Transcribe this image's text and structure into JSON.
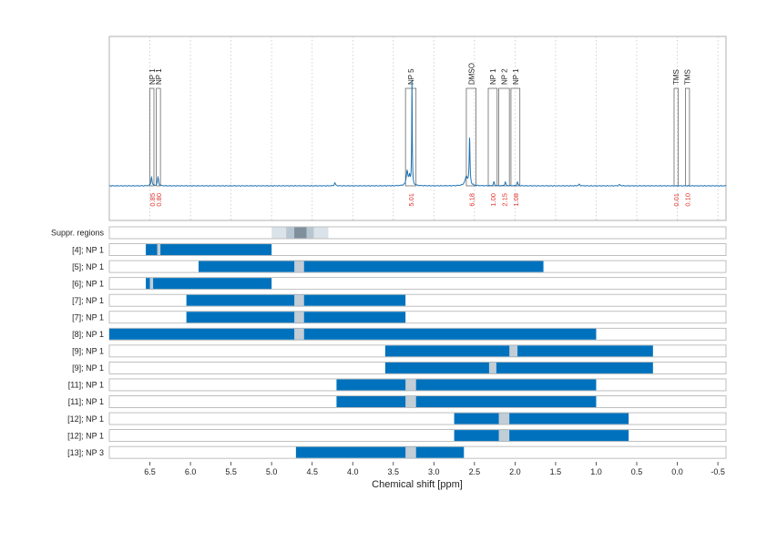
{
  "chart_data": {
    "type": "nmr-spectrum",
    "xlabel": "Chemical shift [ppm]",
    "xlim": [
      7.0,
      -0.6
    ],
    "xticks": [
      {
        "value": 6.5,
        "label": "6.5"
      },
      {
        "value": 6.0,
        "label": "6.0"
      },
      {
        "value": 5.5,
        "label": "5.5"
      },
      {
        "value": 5.0,
        "label": "5.0"
      },
      {
        "value": 4.5,
        "label": "4.5"
      },
      {
        "value": 4.0,
        "label": "4.0"
      },
      {
        "value": 3.5,
        "label": "3.5"
      },
      {
        "value": 3.0,
        "label": "3.0"
      },
      {
        "value": 2.5,
        "label": "2.5"
      },
      {
        "value": 2.0,
        "label": "2.0"
      },
      {
        "value": 1.5,
        "label": "1.5"
      },
      {
        "value": 1.0,
        "label": "1.0"
      },
      {
        "value": 0.5,
        "label": "0.5"
      },
      {
        "value": 0.0,
        "label": "0.0"
      },
      {
        "value": -0.5,
        "label": "-0.5"
      }
    ],
    "spectrum_peaks": [
      {
        "ppm": 6.48,
        "height": 0.07,
        "width": 0.008
      },
      {
        "ppm": 6.4,
        "height": 0.07,
        "width": 0.008
      },
      {
        "ppm": 4.22,
        "height": 0.025,
        "width": 0.008
      },
      {
        "ppm": 3.33,
        "height": 0.12,
        "width": 0.012
      },
      {
        "ppm": 3.3,
        "height": 0.07,
        "width": 0.01
      },
      {
        "ppm": 3.27,
        "height": 0.85,
        "width": 0.004
      },
      {
        "ppm": 2.56,
        "height": 0.38,
        "width": 0.006
      },
      {
        "ppm": 2.6,
        "height": 0.07,
        "width": 0.02
      },
      {
        "ppm": 2.26,
        "height": 0.03,
        "width": 0.008
      },
      {
        "ppm": 2.12,
        "height": 0.03,
        "width": 0.008
      },
      {
        "ppm": 1.97,
        "height": 0.03,
        "width": 0.008
      },
      {
        "ppm": 1.21,
        "height": 0.012,
        "width": 0.01
      },
      {
        "ppm": 0.71,
        "height": 0.01,
        "width": 0.01
      }
    ],
    "peak_regions": [
      {
        "label": "NP 1",
        "from": 6.5,
        "to": 6.45,
        "integral": "0.85"
      },
      {
        "label": "NP 1",
        "from": 6.42,
        "to": 6.37,
        "integral": "0.80"
      },
      {
        "label": "NP 5",
        "from": 3.35,
        "to": 3.22,
        "integral": "5.01"
      },
      {
        "label": "DMSO",
        "from": 2.6,
        "to": 2.48,
        "integral": "6.18"
      },
      {
        "label": "NP 1",
        "from": 2.33,
        "to": 2.22,
        "integral": "1.00"
      },
      {
        "label": "NP 2",
        "from": 2.2,
        "to": 2.07,
        "integral": "2.15"
      },
      {
        "label": "NP 1",
        "from": 2.05,
        "to": 1.94,
        "integral": "1.08"
      },
      {
        "label": "TMS",
        "from": 0.04,
        "to": -0.01,
        "integral": "0.01"
      },
      {
        "label": "TMS",
        "from": -0.1,
        "to": -0.15,
        "integral": "0.10"
      }
    ],
    "rows": [
      {
        "label": "Suppr. regions",
        "type": "suppr",
        "segments": [
          [
            5.0,
            4.3,
            "light"
          ],
          [
            4.82,
            4.48,
            "mid"
          ],
          [
            4.72,
            4.57,
            "dark"
          ]
        ]
      },
      {
        "label": "[4]; NP 1",
        "range": [
          6.55,
          5.0
        ],
        "gaps": [
          [
            6.41,
            6.37
          ]
        ]
      },
      {
        "label": "[5]; NP 1",
        "range": [
          5.9,
          1.65
        ],
        "gaps": [
          [
            4.72,
            4.6
          ]
        ]
      },
      {
        "label": "[6]; NP 1",
        "range": [
          6.55,
          5.0
        ],
        "gaps": [
          [
            6.5,
            6.46
          ]
        ]
      },
      {
        "label": "[7]; NP 1",
        "range": [
          6.05,
          3.35
        ],
        "gaps": [
          [
            4.72,
            4.6
          ]
        ]
      },
      {
        "label": "[7]; NP 1",
        "range": [
          6.05,
          3.35
        ],
        "gaps": [
          [
            4.72,
            4.6
          ]
        ]
      },
      {
        "label": "[8]; NP 1",
        "range": [
          7.0,
          1.0
        ],
        "gaps": [
          [
            4.72,
            4.6
          ]
        ]
      },
      {
        "label": "[9]; NP 1",
        "range": [
          3.6,
          0.3
        ],
        "gaps": [
          [
            2.07,
            1.97
          ]
        ]
      },
      {
        "label": "[9]; NP 1",
        "range": [
          3.6,
          0.3
        ],
        "gaps": [
          [
            2.32,
            2.23
          ]
        ]
      },
      {
        "label": "[11]; NP 1",
        "range": [
          4.2,
          1.0
        ],
        "gaps": [
          [
            3.35,
            3.22
          ]
        ]
      },
      {
        "label": "[11]; NP 1",
        "range": [
          4.2,
          1.0
        ],
        "gaps": [
          [
            3.35,
            3.22
          ]
        ]
      },
      {
        "label": "[12]; NP 1",
        "range": [
          2.75,
          0.6
        ],
        "gaps": [
          [
            2.2,
            2.07
          ]
        ]
      },
      {
        "label": "[12]; NP 1",
        "range": [
          2.75,
          0.6
        ],
        "gaps": [
          [
            2.2,
            2.07
          ]
        ]
      },
      {
        "label": "[13]; NP 3",
        "range": [
          4.7,
          2.63
        ],
        "gaps": [
          [
            3.35,
            3.22
          ]
        ]
      }
    ],
    "colors": {
      "spectrum": "#1f73b4",
      "bar": "#0072bd",
      "gap": "#c2cdd6",
      "suppr_light": "#dbe3ea",
      "suppr_mid": "#b8c6d1",
      "suppr_dark": "#7f8f9c",
      "integral": "#e0302a",
      "frame": "#b0b0b0",
      "grid": "#c8c8c8"
    }
  }
}
